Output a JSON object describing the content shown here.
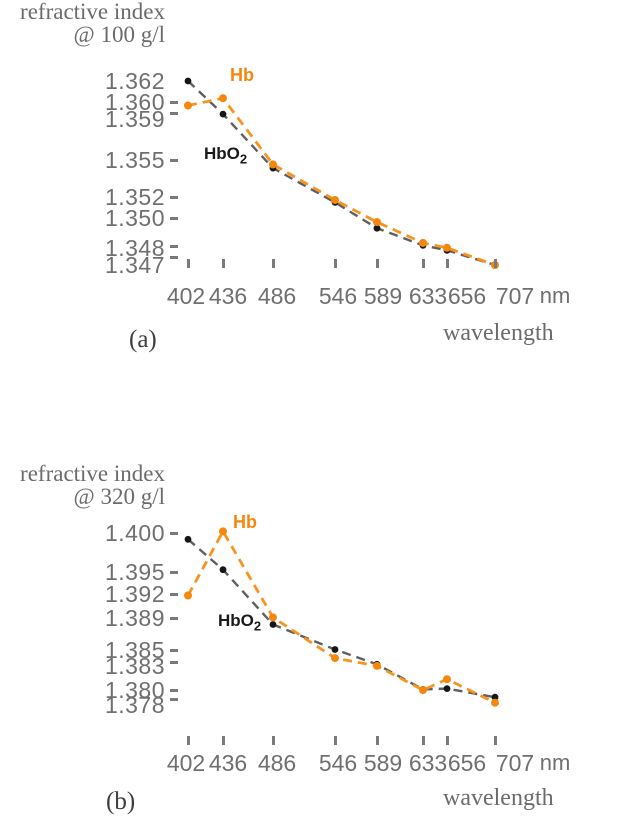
{
  "colors": {
    "hb_orange": "#F5870D",
    "hb_line_orange": "#F79420",
    "hbo2_dot_black": "#161616",
    "hbo2_line_gray": "#5f5f5f",
    "axis_text_gray": "#6f6f6f",
    "title_text_gray": "#6b6b6b",
    "caption_text": "#3d3d3d"
  },
  "chart_data": [
    {
      "type": "line",
      "title": "refractive index @ 100 g/l",
      "title_line1": "refractive index",
      "title_line2": "@ 100 g/l",
      "caption": "(a)",
      "xlabel": "wavelength",
      "x_unit": "nm",
      "ylabel": "refractive index @ 100 g/l",
      "ylim": [
        1.347,
        1.362
      ],
      "grid": false,
      "legend_position": "inline-annotations",
      "x": [
        402,
        436,
        486,
        546,
        589,
        633,
        656,
        707
      ],
      "x_tick_labels": [
        "402",
        "436",
        "486",
        "546",
        "589",
        "633",
        "656",
        "707"
      ],
      "y_tick_labels": [
        "1.362",
        "1.360",
        "1.359",
        "1.355",
        "1.352",
        "1.350",
        "1.348",
        "1.347"
      ],
      "series": [
        {
          "name": "HbO2",
          "label_main": "HbO",
          "label_sub": "2",
          "dot_color": "#161616",
          "line_color": "#5f5f5f",
          "values": [
            1.362,
            1.3593,
            1.3549,
            1.3521,
            1.35,
            1.3486,
            1.3482,
            1.347
          ]
        },
        {
          "name": "Hb",
          "label": "Hb",
          "dot_color": "#F5870D",
          "line_color": "#F79420",
          "values": [
            1.36,
            1.3606,
            1.3552,
            1.3523,
            1.3505,
            1.3488,
            1.3484,
            1.347
          ]
        }
      ]
    },
    {
      "type": "line",
      "title": "refractive index @ 320 g/l",
      "title_line1": "refractive index",
      "title_line2": "@ 320 g/l",
      "caption": "(b)",
      "xlabel": "wavelength",
      "x_unit": "nm",
      "ylabel": "refractive index @ 320 g/l",
      "ylim": [
        1.378,
        1.4
      ],
      "grid": false,
      "legend_position": "inline-annotations",
      "x": [
        402,
        436,
        486,
        546,
        589,
        633,
        656,
        707
      ],
      "x_tick_labels": [
        "402",
        "436",
        "486",
        "546",
        "589",
        "633",
        "656",
        "707"
      ],
      "y_tick_labels": [
        "1.400",
        "1.395",
        "1.392",
        "1.389",
        "1.385",
        "1.383",
        "1.380",
        "1.378"
      ],
      "series": [
        {
          "name": "HbO2",
          "label_main": "HbO",
          "label_sub": "2",
          "dot_color": "#161616",
          "line_color": "#5f5f5f",
          "values": [
            1.3992,
            1.3953,
            1.3883,
            1.3851,
            1.3832,
            1.38,
            1.3801,
            1.379
          ]
        },
        {
          "name": "Hb",
          "label": "Hb",
          "dot_color": "#F5870D",
          "line_color": "#F79420",
          "values": [
            1.392,
            1.4002,
            1.3892,
            1.384,
            1.383,
            1.3799,
            1.3813,
            1.3783
          ]
        }
      ]
    }
  ]
}
